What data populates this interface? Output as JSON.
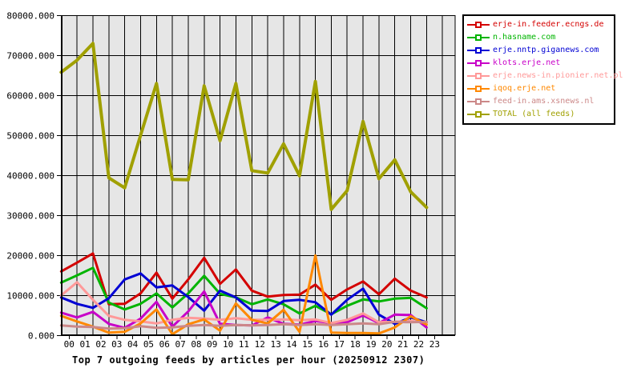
{
  "title": "Top 7 outgoing feeds by articles per hour (20250912 2307)",
  "chart_data": {
    "type": "line",
    "title": "Top 7 outgoing feeds by articles per hour (20250912 2307)",
    "xlabel": "",
    "ylabel": "",
    "x": [
      "00",
      "01",
      "02",
      "03",
      "04",
      "05",
      "06",
      "07",
      "08",
      "09",
      "10",
      "11",
      "12",
      "13",
      "14",
      "15",
      "16",
      "17",
      "18",
      "19",
      "20",
      "21",
      "22",
      "23"
    ],
    "ylim": [
      0,
      80000
    ],
    "ytick_labels": [
      "80000.000",
      "70000.000",
      "60000.000",
      "50000.000",
      "40000.000",
      "30000.000",
      "20000.000",
      "10000.000",
      "0.000"
    ],
    "grid": true,
    "legend_position": "outside-right-top",
    "plot_bg_color": "#e6e6e6",
    "grid_color": "#000000",
    "axis_color": "#000000",
    "series": [
      {
        "name": "erje-in.feeder.ecngs.de",
        "color": "#d40000",
        "values": [
          16000,
          18200,
          20500,
          7800,
          7900,
          10500,
          15700,
          9200,
          14000,
          19400,
          12900,
          16500,
          11200,
          9700,
          10100,
          10200,
          12700,
          8900,
          11500,
          13500,
          10300,
          14200,
          11200,
          9500
        ]
      },
      {
        "name": "n.hasname.com",
        "color": "#00b400",
        "values": [
          13200,
          15000,
          16900,
          8200,
          6500,
          7900,
          10500,
          7000,
          10500,
          14900,
          10400,
          9500,
          7800,
          9000,
          7800,
          5500,
          7400,
          5300,
          7400,
          9000,
          8500,
          9200,
          9400,
          6800
        ]
      },
      {
        "name": "erje.nntp.giganews.com",
        "color": "#0000d4",
        "values": [
          9500,
          7900,
          6900,
          9300,
          14000,
          15500,
          12000,
          12500,
          9600,
          6200,
          11200,
          9500,
          6200,
          6100,
          8600,
          8900,
          8300,
          5200,
          8900,
          11700,
          5200,
          2900,
          4500,
          3300
        ]
      },
      {
        "name": "klots.erje.net",
        "color": "#c800c8",
        "values": [
          5700,
          4500,
          5900,
          2900,
          1900,
          4200,
          8400,
          2200,
          6000,
          11000,
          2900,
          2600,
          2500,
          4500,
          2900,
          2700,
          3600,
          3100,
          3300,
          5000,
          3100,
          5200,
          5100,
          2000
        ]
      },
      {
        "name": "erje.news-in.pionier.net.pl",
        "color": "#ff9999",
        "values": [
          10000,
          13300,
          8900,
          4900,
          3900,
          3500,
          3000,
          3900,
          4400,
          4200,
          3900,
          4300,
          3900,
          3900,
          4000,
          3800,
          4000,
          3100,
          3900,
          5500,
          3300,
          3400,
          3600,
          3100
        ]
      },
      {
        "name": "iqoq.erje.net",
        "color": "#ff8800",
        "values": [
          4900,
          3500,
          2200,
          700,
          900,
          3000,
          6500,
          300,
          2800,
          4000,
          1200,
          8000,
          3900,
          3000,
          6400,
          900,
          20000,
          700,
          600,
          600,
          500,
          2000,
          4800,
          2700
        ]
      },
      {
        "name": "feed-in.ams.xsnews.nl",
        "color": "#cc8888",
        "values": [
          2500,
          2200,
          2100,
          1700,
          1800,
          2300,
          1900,
          2000,
          2400,
          2600,
          2400,
          2600,
          2500,
          2600,
          2800,
          2600,
          2800,
          2600,
          2800,
          3000,
          2800,
          3400,
          3300,
          3400
        ]
      },
      {
        "name": "TOTAL (all feeds)",
        "color": "#a0a000",
        "values": [
          65800,
          68800,
          73000,
          39400,
          36900,
          50000,
          63000,
          39000,
          38900,
          62400,
          48700,
          63000,
          41200,
          40600,
          47900,
          39900,
          63500,
          31500,
          36200,
          53500,
          39200,
          43900,
          35900,
          32000
        ]
      }
    ]
  }
}
